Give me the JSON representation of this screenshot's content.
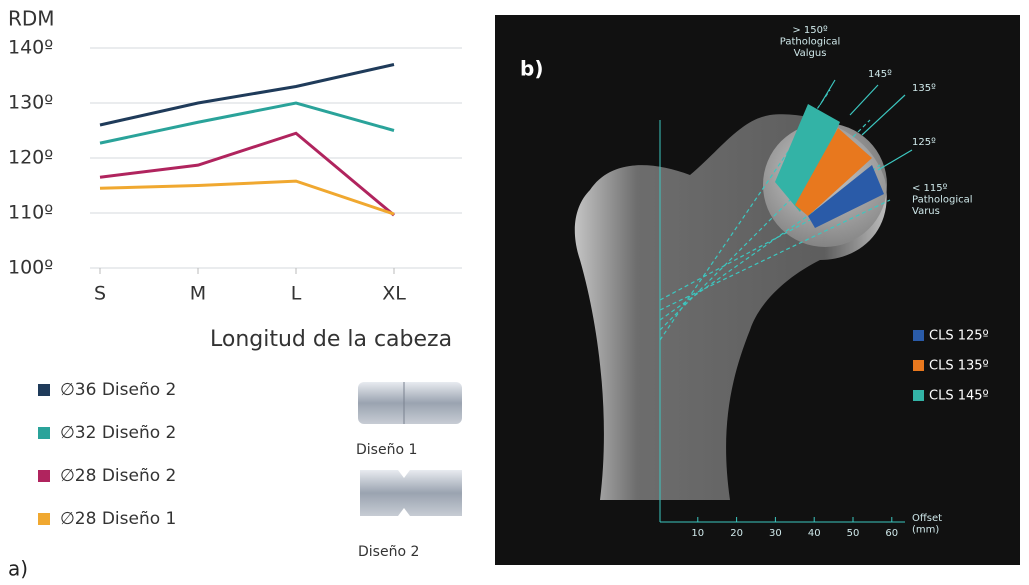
{
  "chart_data": {
    "type": "line",
    "y_label": "RDM",
    "x_label": "Longitud de la cabeza",
    "categories": [
      "S",
      "M",
      "L",
      "XL"
    ],
    "series": [
      {
        "name": "∅36  Diseño 2",
        "color": "#1f3b5a",
        "values": [
          126,
          130,
          133,
          137
        ]
      },
      {
        "name": "∅32  Diseño 2",
        "color": "#2aa39a",
        "values": [
          122.7,
          126.5,
          130,
          125
        ]
      },
      {
        "name": "∅28  Diseño 2",
        "color": "#b0245e",
        "values": [
          116.5,
          118.7,
          124.5,
          109.6
        ]
      },
      {
        "name": "∅28  Diseño 1",
        "color": "#f0a830",
        "values": [
          114.5,
          115,
          115.8,
          109.8
        ]
      }
    ],
    "ylim": [
      100,
      140
    ],
    "yticks": [
      {
        "value": 100,
        "label": "100º"
      },
      {
        "value": 110,
        "label": "110º"
      },
      {
        "value": 120,
        "label": "120º"
      },
      {
        "value": 130,
        "label": "130º"
      },
      {
        "value": 140,
        "label": "140º"
      }
    ],
    "grid": true
  },
  "figure": {
    "panel_a_label": "a)",
    "design_captions": [
      "Diseño 1",
      "Diseño 2"
    ]
  },
  "panel_b": {
    "label": "b)",
    "angle_labels": [
      "> 150º\nPathological\nValgus",
      "145º",
      "135º",
      "125º",
      "< 115º\nPathological\nVarus"
    ],
    "legend": [
      {
        "name": "CLS 125º",
        "color": "#2a5ba8"
      },
      {
        "name": "CLS 135º",
        "color": "#e8781e"
      },
      {
        "name": "CLS 145º",
        "color": "#33b3a6"
      }
    ],
    "offset_axis": {
      "label": "Offset\n(mm)",
      "ticks": [
        10,
        20,
        30,
        40,
        50,
        60
      ]
    }
  }
}
